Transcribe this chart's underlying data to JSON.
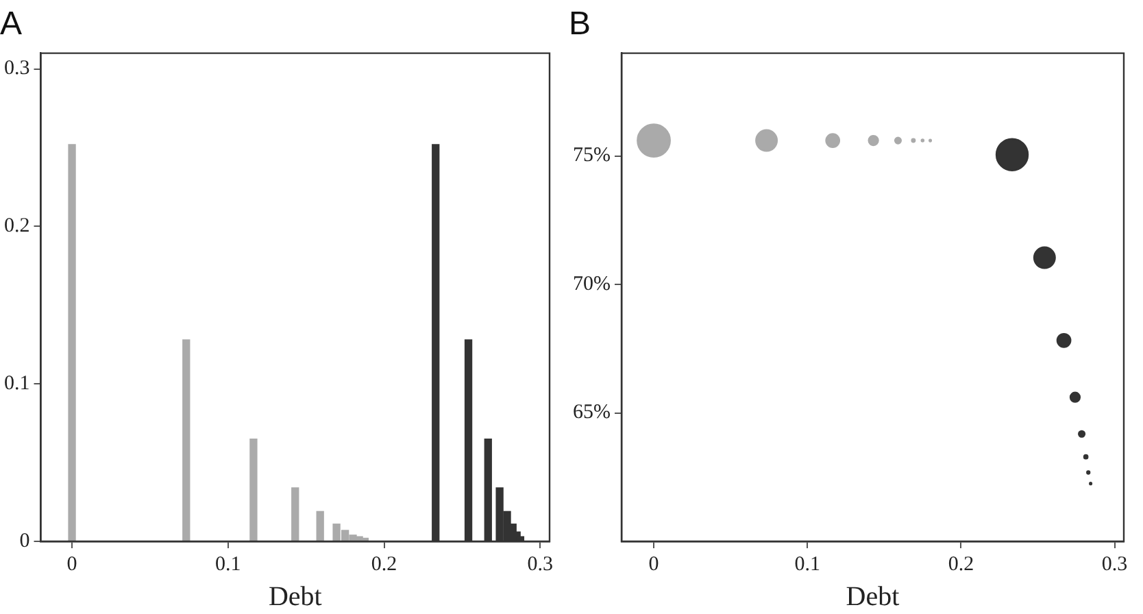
{
  "chart_data": [
    {
      "type": "bar",
      "title": "A",
      "xlabel": "Debt",
      "xlim": [
        -0.02,
        0.306
      ],
      "xticks": [
        0,
        0.1,
        0.2,
        0.3
      ],
      "ylim": [
        0,
        0.31
      ],
      "yticks": [
        0,
        0.1,
        0.2,
        0.3
      ],
      "grid": false,
      "legend": false,
      "series": [
        {
          "color": "#aaaaaa",
          "x": [
            0,
            0.0732,
            0.1163,
            0.143,
            0.159,
            0.1695,
            0.175,
            0.18,
            0.184,
            0.1876
          ],
          "values": [
            0.252,
            0.128,
            0.065,
            0.034,
            0.019,
            0.011,
            0.007,
            0.004,
            0.003,
            0.002
          ]
        },
        {
          "color": "#333333",
          "x": [
            0.233,
            0.254,
            0.2666,
            0.274,
            0.2788,
            0.2824,
            0.285,
            0.2873
          ],
          "values": [
            0.252,
            0.128,
            0.065,
            0.034,
            0.019,
            0.011,
            0.006,
            0.003
          ]
        }
      ]
    },
    {
      "type": "bubble",
      "title": "B",
      "xlabel": "Debt",
      "xlim": [
        -0.021,
        0.306
      ],
      "xticks": [
        0,
        0.1,
        0.2,
        0.3
      ],
      "ylim": [
        60,
        79
      ],
      "yticks": [
        {
          "value": 65,
          "label": "65%"
        },
        {
          "value": 70,
          "label": "70%"
        },
        {
          "value": 75,
          "label": "75%"
        }
      ],
      "grid": false,
      "legend": false,
      "series": [
        {
          "color": "#aaaaaa",
          "x": [
            0,
            0.0734,
            0.1165,
            0.143,
            0.159,
            0.169,
            0.175,
            0.18
          ],
          "values": [
            75.6,
            75.6,
            75.6,
            75.6,
            75.6,
            75.6,
            75.6,
            75.6
          ],
          "sizes": [
            1,
            0.41,
            0.16,
            0.08,
            0.03,
            0.007,
            0.003,
            0.002
          ]
        },
        {
          "color": "#333333",
          "x": [
            0.2333,
            0.2544,
            0.267,
            0.2743,
            0.2786,
            0.2813,
            0.2829,
            0.2844
          ],
          "values": [
            75.05,
            71.04,
            67.82,
            65.61,
            64.18,
            63.29,
            62.68,
            62.25
          ],
          "sizes": [
            0.94,
            0.41,
            0.16,
            0.08,
            0.03,
            0.01,
            0.005,
            0.002
          ]
        }
      ]
    }
  ]
}
